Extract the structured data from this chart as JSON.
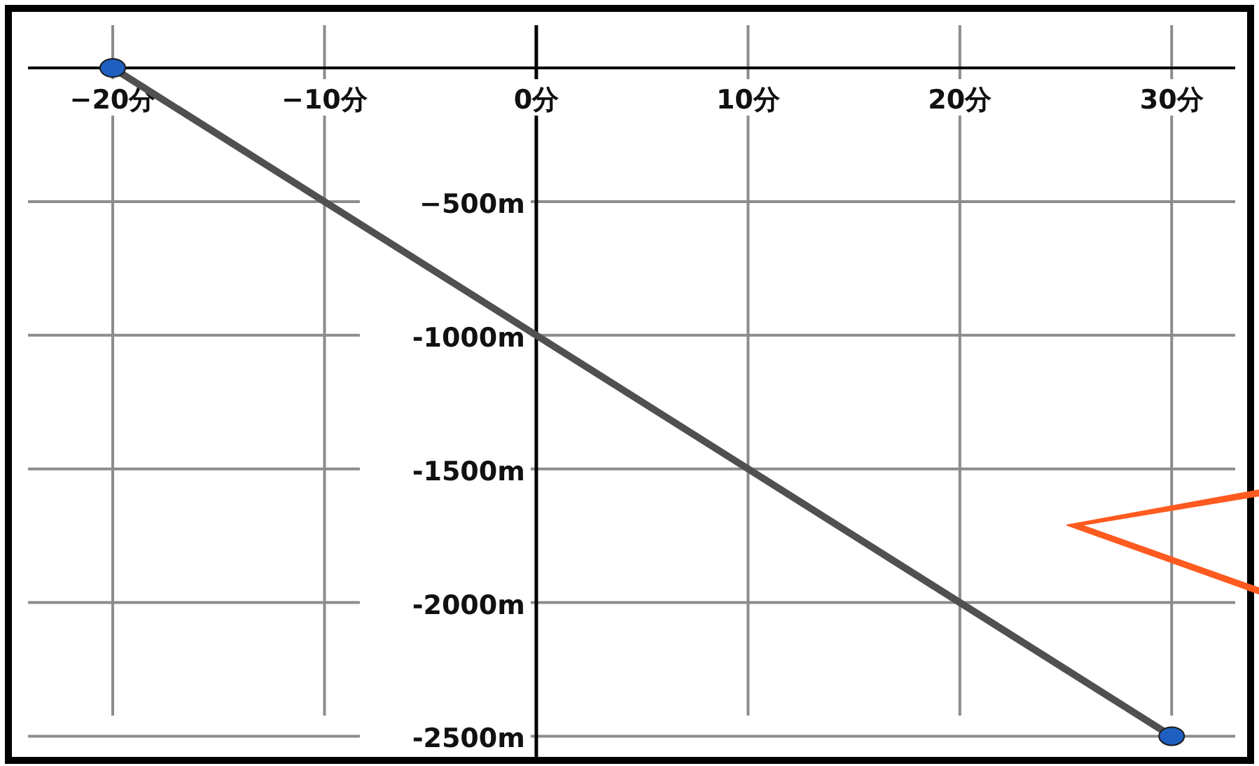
{
  "chart_data": {
    "type": "line",
    "xlim": [
      -24,
      33
    ],
    "ylim": [
      -2580,
      160
    ],
    "xticks": [
      {
        "value": -20,
        "label": "−20分"
      },
      {
        "value": -10,
        "label": "−10分"
      },
      {
        "value": 0,
        "label": "0分"
      },
      {
        "value": 10,
        "label": "10分"
      },
      {
        "value": 20,
        "label": "20分"
      },
      {
        "value": 30,
        "label": "30分"
      }
    ],
    "yticks": [
      {
        "value": -500,
        "label": "−500m"
      },
      {
        "value": -1000,
        "label": "-1000m"
      },
      {
        "value": -1500,
        "label": "-1500m"
      },
      {
        "value": -2000,
        "label": "-2000m"
      },
      {
        "value": -2500,
        "label": "-2500m"
      }
    ],
    "grid": true,
    "x": [
      -20,
      30
    ],
    "series": [
      {
        "color": "#505050",
        "values": [
          0,
          -2500
        ],
        "marker": "none"
      },
      {
        "type": "scatter",
        "color": "#1f5fbf",
        "values": [
          0,
          -2500
        ],
        "marker": "circle"
      }
    ]
  }
}
